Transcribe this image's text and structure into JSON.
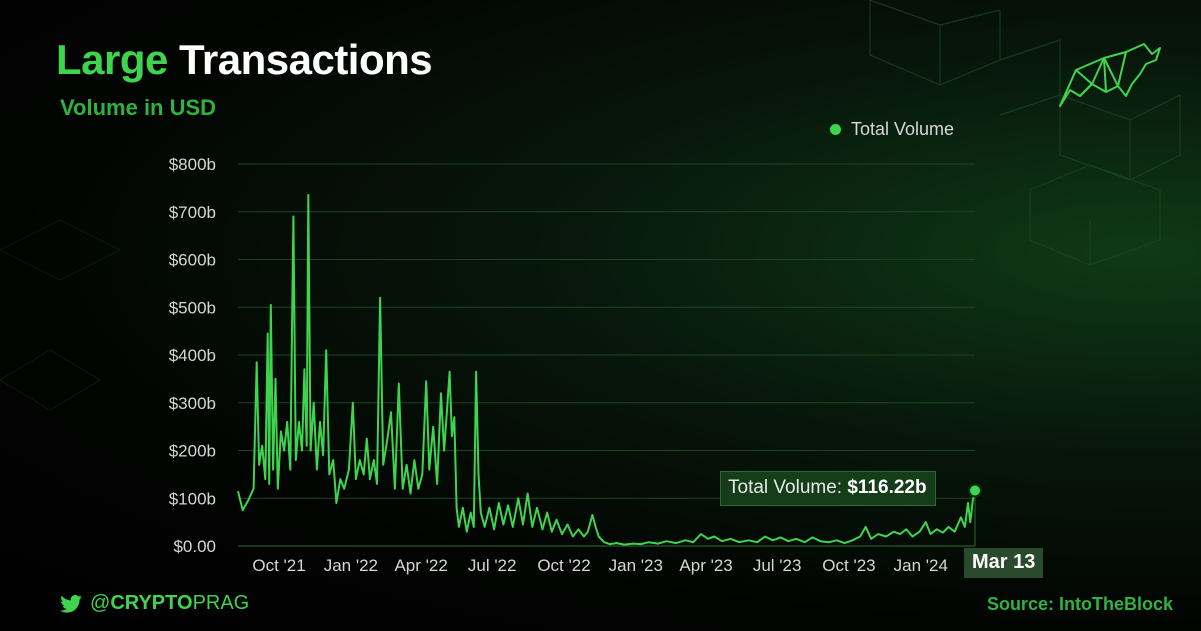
{
  "header": {
    "title_accent": "Large",
    "title_rest": " Transactions",
    "subtitle": "Volume in USD"
  },
  "legend": {
    "label": "Total Volume",
    "color": "#3fd44e"
  },
  "tooltip": {
    "label": "Total Volume:",
    "value": "$116.22b"
  },
  "hover_date": "Mar 13",
  "footer": {
    "handle_at": "@",
    "handle_bold": "CRYPTO",
    "handle_rest": "PRAG",
    "source_label": "Source:",
    "source_value": "IntoTheBlock"
  },
  "icons": {
    "brand": "bull-logo-icon",
    "social": "twitter-bird-icon"
  },
  "chart_data": {
    "type": "line",
    "title": "Large Transactions",
    "subtitle": "Volume in USD",
    "series_name": "Total Volume",
    "color": "#3fd44e",
    "ylim": [
      0,
      800
    ],
    "xlim": [
      "2021-08-12",
      "2024-03-13"
    ],
    "yticks": [
      0,
      100,
      200,
      300,
      400,
      500,
      600,
      700,
      800
    ],
    "ytick_labels": [
      "$0.00",
      "$100b",
      "$200b",
      "$300b",
      "$400b",
      "$500b",
      "$600b",
      "$700b",
      "$800b"
    ],
    "xticks": [
      "2021-10-01",
      "2022-01-01",
      "2022-04-01",
      "2022-07-01",
      "2022-10-01",
      "2023-01-01",
      "2023-04-01",
      "2023-07-01",
      "2023-10-01",
      "2024-01-01"
    ],
    "xtick_labels": [
      "Oct '21",
      "Jan '22",
      "Apr '22",
      "Jul '22",
      "Oct '22",
      "Jan '23",
      "Apr '23",
      "Jul '23",
      "Oct '23",
      "Jan '24"
    ],
    "grid": true,
    "legend_position": "top-right",
    "highlight": {
      "x": "2024-03-13",
      "y": 116.22
    },
    "points": [
      [
        "2021-08-12",
        115
      ],
      [
        "2021-08-18",
        75
      ],
      [
        "2021-08-25",
        95
      ],
      [
        "2021-09-01",
        120
      ],
      [
        "2021-09-05",
        385
      ],
      [
        "2021-09-08",
        170
      ],
      [
        "2021-09-12",
        210
      ],
      [
        "2021-09-16",
        140
      ],
      [
        "2021-09-19",
        445
      ],
      [
        "2021-09-21",
        130
      ],
      [
        "2021-09-23",
        505
      ],
      [
        "2021-09-26",
        160
      ],
      [
        "2021-09-29",
        350
      ],
      [
        "2021-10-02",
        120
      ],
      [
        "2021-10-06",
        240
      ],
      [
        "2021-10-10",
        200
      ],
      [
        "2021-10-14",
        260
      ],
      [
        "2021-10-18",
        160
      ],
      [
        "2021-10-22",
        690
      ],
      [
        "2021-10-25",
        180
      ],
      [
        "2021-10-29",
        260
      ],
      [
        "2021-11-02",
        200
      ],
      [
        "2021-11-05",
        370
      ],
      [
        "2021-11-08",
        210
      ],
      [
        "2021-11-10",
        735
      ],
      [
        "2021-11-13",
        200
      ],
      [
        "2021-11-17",
        300
      ],
      [
        "2021-11-21",
        160
      ],
      [
        "2021-11-25",
        260
      ],
      [
        "2021-11-29",
        190
      ],
      [
        "2021-12-03",
        410
      ],
      [
        "2021-12-07",
        150
      ],
      [
        "2021-12-12",
        180
      ],
      [
        "2021-12-16",
        90
      ],
      [
        "2021-12-21",
        140
      ],
      [
        "2021-12-26",
        120
      ],
      [
        "2022-01-01",
        160
      ],
      [
        "2022-01-06",
        300
      ],
      [
        "2022-01-10",
        140
      ],
      [
        "2022-01-15",
        180
      ],
      [
        "2022-01-20",
        150
      ],
      [
        "2022-01-24",
        225
      ],
      [
        "2022-01-28",
        140
      ],
      [
        "2022-02-02",
        180
      ],
      [
        "2022-02-06",
        130
      ],
      [
        "2022-02-10",
        520
      ],
      [
        "2022-02-14",
        170
      ],
      [
        "2022-02-19",
        220
      ],
      [
        "2022-02-24",
        280
      ],
      [
        "2022-03-01",
        120
      ],
      [
        "2022-03-06",
        340
      ],
      [
        "2022-03-11",
        120
      ],
      [
        "2022-03-16",
        170
      ],
      [
        "2022-03-21",
        110
      ],
      [
        "2022-03-26",
        180
      ],
      [
        "2022-03-31",
        120
      ],
      [
        "2022-04-05",
        150
      ],
      [
        "2022-04-10",
        345
      ],
      [
        "2022-04-14",
        160
      ],
      [
        "2022-04-19",
        250
      ],
      [
        "2022-04-24",
        130
      ],
      [
        "2022-04-29",
        320
      ],
      [
        "2022-05-03",
        200
      ],
      [
        "2022-05-07",
        290
      ],
      [
        "2022-05-10",
        365
      ],
      [
        "2022-05-13",
        230
      ],
      [
        "2022-05-16",
        270
      ],
      [
        "2022-05-19",
        80
      ],
      [
        "2022-05-22",
        40
      ],
      [
        "2022-05-27",
        80
      ],
      [
        "2022-06-01",
        30
      ],
      [
        "2022-06-06",
        70
      ],
      [
        "2022-06-10",
        40
      ],
      [
        "2022-06-13",
        365
      ],
      [
        "2022-06-16",
        150
      ],
      [
        "2022-06-19",
        70
      ],
      [
        "2022-06-24",
        40
      ],
      [
        "2022-06-30",
        80
      ],
      [
        "2022-07-06",
        35
      ],
      [
        "2022-07-12",
        90
      ],
      [
        "2022-07-18",
        45
      ],
      [
        "2022-07-24",
        85
      ],
      [
        "2022-07-30",
        40
      ],
      [
        "2022-08-06",
        100
      ],
      [
        "2022-08-12",
        45
      ],
      [
        "2022-08-18",
        110
      ],
      [
        "2022-08-24",
        40
      ],
      [
        "2022-08-30",
        80
      ],
      [
        "2022-09-06",
        35
      ],
      [
        "2022-09-12",
        70
      ],
      [
        "2022-09-18",
        30
      ],
      [
        "2022-09-24",
        55
      ],
      [
        "2022-10-01",
        25
      ],
      [
        "2022-10-08",
        45
      ],
      [
        "2022-10-15",
        20
      ],
      [
        "2022-10-22",
        35
      ],
      [
        "2022-10-29",
        20
      ],
      [
        "2022-11-03",
        30
      ],
      [
        "2022-11-09",
        65
      ],
      [
        "2022-11-13",
        40
      ],
      [
        "2022-11-17",
        20
      ],
      [
        "2022-11-24",
        8
      ],
      [
        "2022-12-01",
        4
      ],
      [
        "2022-12-10",
        6
      ],
      [
        "2022-12-20",
        3
      ],
      [
        "2022-12-31",
        5
      ],
      [
        "2023-01-10",
        4
      ],
      [
        "2023-01-20",
        8
      ],
      [
        "2023-02-01",
        5
      ],
      [
        "2023-02-12",
        10
      ],
      [
        "2023-02-24",
        6
      ],
      [
        "2023-03-08",
        12
      ],
      [
        "2023-03-18",
        8
      ],
      [
        "2023-03-28",
        25
      ],
      [
        "2023-04-06",
        15
      ],
      [
        "2023-04-14",
        20
      ],
      [
        "2023-04-24",
        10
      ],
      [
        "2023-05-05",
        15
      ],
      [
        "2023-05-16",
        8
      ],
      [
        "2023-05-28",
        12
      ],
      [
        "2023-06-08",
        8
      ],
      [
        "2023-06-18",
        20
      ],
      [
        "2023-06-28",
        12
      ],
      [
        "2023-07-08",
        18
      ],
      [
        "2023-07-18",
        10
      ],
      [
        "2023-07-28",
        15
      ],
      [
        "2023-08-08",
        8
      ],
      [
        "2023-08-18",
        18
      ],
      [
        "2023-08-28",
        10
      ],
      [
        "2023-09-08",
        8
      ],
      [
        "2023-09-18",
        12
      ],
      [
        "2023-09-28",
        6
      ],
      [
        "2023-10-08",
        12
      ],
      [
        "2023-10-18",
        20
      ],
      [
        "2023-10-25",
        40
      ],
      [
        "2023-11-01",
        15
      ],
      [
        "2023-11-10",
        25
      ],
      [
        "2023-11-20",
        20
      ],
      [
        "2023-11-30",
        30
      ],
      [
        "2023-12-08",
        25
      ],
      [
        "2023-12-16",
        35
      ],
      [
        "2023-12-24",
        20
      ],
      [
        "2024-01-02",
        30
      ],
      [
        "2024-01-10",
        50
      ],
      [
        "2024-01-16",
        25
      ],
      [
        "2024-01-24",
        35
      ],
      [
        "2024-02-01",
        28
      ],
      [
        "2024-02-08",
        40
      ],
      [
        "2024-02-16",
        30
      ],
      [
        "2024-02-24",
        60
      ],
      [
        "2024-02-29",
        40
      ],
      [
        "2024-03-04",
        90
      ],
      [
        "2024-03-07",
        50
      ],
      [
        "2024-03-10",
        95
      ],
      [
        "2024-03-13",
        116.22
      ]
    ]
  }
}
